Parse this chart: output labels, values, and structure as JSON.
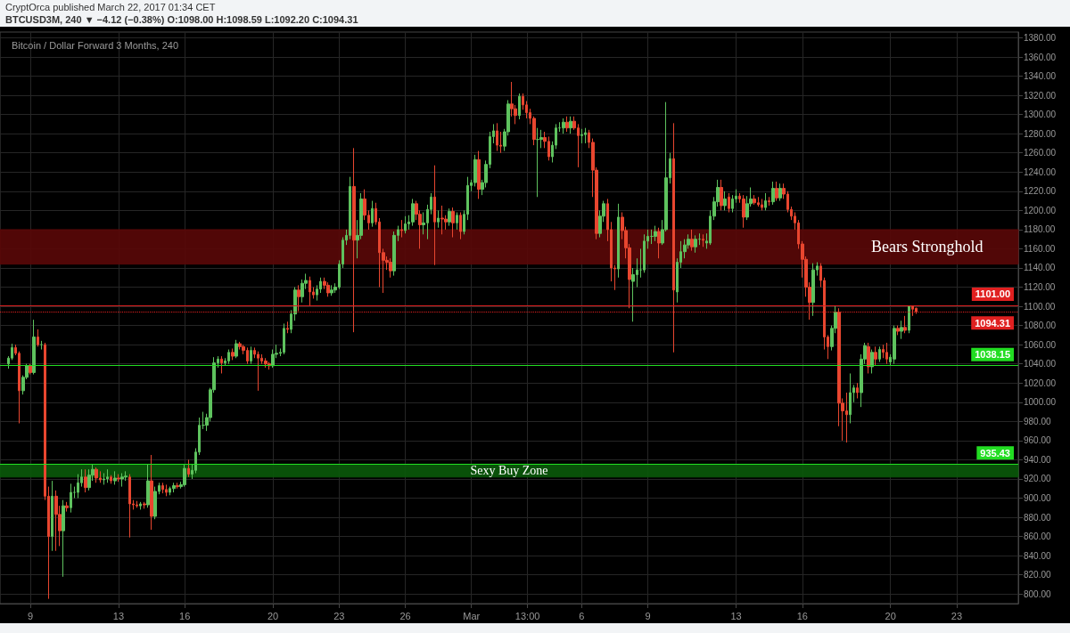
{
  "chart_data": {
    "type": "candlestick",
    "title": "Bitcoin / Dollar Forward 3 Months, 240",
    "subtitle": "BTCUSD3M, 240 ▼ −4.12 (−0.38%) O:1098.00 H:1098.59 L:1092.20 C:1094.31",
    "annotations": [
      "CryptOrca published March 22, 2017 01:34 CET"
    ],
    "colors": [
      "#5ec25e",
      "#5ec25e",
      "#e8462f",
      "#e8462f",
      "#5ec25e",
      "#5ec25e",
      "#e8462f",
      "#5ec25e",
      "#e8462f",
      "#5ec25e",
      "#e8462f",
      "#e8462f",
      "#5ec25e",
      "#e8462f",
      "#e8462f",
      "#5ec25e",
      "#e8462f",
      "#5ec25e",
      "#5ec25e",
      "#5ec25e",
      "#5ec25e",
      "#e8462f",
      "#5ec25e",
      "#5ec25e",
      "#e8462f",
      "#e8462f",
      "#5ec25e",
      "#5ec25e",
      "#e8462f",
      "#5ec25e",
      "#e8462f",
      "#5ec25e",
      "#5ec25e",
      "#e8462f",
      "#e8462f",
      "#e8462f",
      "#5ec25e",
      "#e8462f",
      "#5ec25e",
      "#e8462f",
      "#5ec25e",
      "#5ec25e",
      "#e8462f",
      "#e8462f",
      "#5ec25e",
      "#5ec25e",
      "#e8462f",
      "#5ec25e",
      "#5ec25e",
      "#e8462f",
      "#5ec25e",
      "#5ec25e",
      "#5ec25e",
      "#5ec25e",
      "#5ec25e",
      "#5ec25e",
      "#5ec25e",
      "#5ec25e",
      "#e8462f",
      "#5ec25e",
      "#5ec25e",
      "#e8462f",
      "#5ec25e",
      "#e8462f",
      "#e8462f",
      "#e8462f",
      "#5ec25e",
      "#e8462f",
      "#e8462f",
      "#e8462f",
      "#e8462f",
      "#e8462f",
      "#5ec25e",
      "#5ec25e",
      "#5ec25e",
      "#5ec25e",
      "#e8462f",
      "#5ec25e",
      "#5ec25e",
      "#e8462f",
      "#5ec25e",
      "#5ec25e",
      "#e8462f",
      "#e8462f",
      "#5ec25e",
      "#5ec25e",
      "#e8462f",
      "#e8462f",
      "#5ec25e",
      "#5ec25e",
      "#5ec25e",
      "#5ec25e",
      "#5ec25e",
      "#5ec25e",
      "#e8462f",
      "#5ec25e",
      "#5ec25e",
      "#e8462f",
      "#e8462f",
      "#5ec25e",
      "#e8462f",
      "#e8462f",
      "#e8462f",
      "#e8462f",
      "#e8462f",
      "#5ec25e",
      "#5ec25e",
      "#e8462f",
      "#5ec25e",
      "#5ec25e",
      "#5ec25e",
      "#e8462f",
      "#e8462f",
      "#5ec25e",
      "#5ec25e",
      "#5ec25e",
      "#e8462f",
      "#5ec25e",
      "#e8462f",
      "#e8462f",
      "#5ec25e",
      "#e8462f",
      "#5ec25e",
      "#e8462f",
      "#5ec25e",
      "#5ec25e",
      "#5ec25e",
      "#5ec25e",
      "#e8462f",
      "#5ec25e",
      "#5ec25e",
      "#5ec25e",
      "#5ec25e",
      "#e8462f",
      "#e8462f",
      "#5ec25e",
      "#5ec25e",
      "#e8462f",
      "#e8462f",
      "#5ec25e",
      "#e8462f",
      "#e8462f",
      "#e8462f",
      "#e8462f",
      "#5ec25e",
      "#5ec25e",
      "#e8462f",
      "#e8462f",
      "#5ec25e",
      "#5ec25e",
      "#5ec25e",
      "#5ec25e",
      "#e8462f",
      "#5ec25e",
      "#e8462f",
      "#e8462f",
      "#5ec25e",
      "#5ec25e",
      "#e8462f",
      "#e8462f",
      "#e8462f",
      "#5ec25e",
      "#5ec25e",
      "#e8462f",
      "#e8462f",
      "#e8462f",
      "#5ec25e",
      "#e8462f",
      "#e8462f",
      "#e8462f",
      "#5ec25e",
      "#5ec25e",
      "#5ec25e",
      "#5ec25e",
      "#5ec25e",
      "#5ec25e",
      "#5ec25e",
      "#e8462f",
      "#5ec25e",
      "#5ec25e",
      "#5ec25e",
      "#e8462f",
      "#5ec25e",
      "#5ec25e",
      "#5ec25e",
      "#5ec25e",
      "#e8462f",
      "#5ec25e",
      "#5ec25e",
      "#e8462f",
      "#5ec25e",
      "#5ec25e",
      "#5ec25e",
      "#5ec25e",
      "#e8462f",
      "#5ec25e",
      "#e8462f",
      "#5ec25e",
      "#5ec25e",
      "#e8462f",
      "#e8462f",
      "#5ec25e",
      "#5ec25e",
      "#e8462f",
      "#e8462f",
      "#e8462f",
      "#5ec25e",
      "#e8462f",
      "#5ec25e",
      "#e8462f",
      "#5ec25e",
      "#e8462f",
      "#e8462f",
      "#e8462f",
      "#e8462f",
      "#e8462f",
      "#e8462f",
      "#e8462f",
      "#e8462f",
      "#5ec25e",
      "#5ec25e",
      "#e8462f",
      "#e8462f",
      "#e8462f",
      "#5ec25e",
      "#5ec25e",
      "#e8462f",
      "#e8462f",
      "#e8462f",
      "#5ec25e",
      "#5ec25e",
      "#e8462f",
      "#5ec25e",
      "#5ec25e",
      "#e8462f",
      "#5ec25e",
      "#e8462f",
      "#5ec25e",
      "#e8462f",
      "#e8462f",
      "#5ec25e",
      "#5ec25e",
      "#e8462f",
      "#5ec25e",
      "#e8462f",
      "#5ec25e",
      "#e8462f",
      "#e8462f"
    ],
    "x": [
      "2017-02-08T00:00",
      "2017-02-08T04:00",
      "2017-02-08T08:00",
      "2017-02-08T12:00",
      "2017-02-08T16:00",
      "2017-02-08T20:00",
      "2017-02-09T00:00",
      "2017-02-09T04:00",
      "2017-02-09T08:00",
      "2017-02-09T12:00",
      "2017-02-09T16:00",
      "2017-02-09T20:00",
      "2017-02-10T00:00",
      "2017-02-10T04:00",
      "2017-02-10T08:00",
      "2017-02-10T12:00",
      "2017-02-10T16:00",
      "2017-02-10T20:00",
      "2017-02-11T00:00",
      "2017-02-11T04:00",
      "2017-02-11T08:00",
      "2017-02-11T12:00",
      "2017-02-11T16:00",
      "2017-02-11T20:00",
      "2017-02-12T00:00",
      "2017-02-12T04:00",
      "2017-02-12T08:00",
      "2017-02-12T12:00",
      "2017-02-12T16:00",
      "2017-02-12T20:00",
      "2017-02-13T00:00",
      "2017-02-13T04:00",
      "2017-02-13T08:00",
      "2017-02-13T12:00",
      "2017-02-13T16:00",
      "2017-02-13T20:00",
      "2017-02-14T00:00",
      "2017-02-14T04:00",
      "2017-02-14T08:00",
      "2017-02-14T12:00",
      "2017-02-14T16:00",
      "2017-02-14T20:00",
      "2017-02-15T00:00",
      "2017-02-15T04:00",
      "2017-02-15T08:00",
      "2017-02-15T12:00",
      "2017-02-15T16:00",
      "2017-02-15T20:00",
      "2017-02-16T00:00",
      "2017-02-16T04:00",
      "2017-02-16T08:00",
      "2017-02-16T12:00",
      "2017-02-16T16:00",
      "2017-02-16T20:00",
      "2017-02-17T00:00",
      "2017-02-17T04:00",
      "2017-02-17T08:00",
      "2017-02-17T12:00",
      "2017-02-17T16:00",
      "2017-02-17T20:00",
      "2017-02-18T00:00",
      "2017-02-18T04:00",
      "2017-02-18T08:00",
      "2017-02-18T12:00",
      "2017-02-18T16:00",
      "2017-02-18T20:00",
      "2017-02-19T00:00",
      "2017-02-19T04:00",
      "2017-02-19T08:00",
      "2017-02-19T12:00",
      "2017-02-19T16:00",
      "2017-02-19T20:00",
      "2017-02-20T00:00",
      "2017-02-20T04:00",
      "2017-02-20T08:00",
      "2017-02-20T12:00",
      "2017-02-20T16:00",
      "2017-02-20T20:00",
      "2017-02-21T00:00",
      "2017-02-21T04:00",
      "2017-02-21T08:00",
      "2017-02-21T12:00",
      "2017-02-21T16:00",
      "2017-02-21T20:00",
      "2017-02-22T00:00",
      "2017-02-22T04:00",
      "2017-02-22T08:00",
      "2017-02-22T12:00",
      "2017-02-22T16:00",
      "2017-02-22T20:00",
      "2017-02-23T00:00",
      "2017-02-23T04:00",
      "2017-02-23T08:00",
      "2017-02-23T12:00",
      "2017-02-23T16:00",
      "2017-02-23T20:00",
      "2017-02-24T00:00",
      "2017-02-24T04:00",
      "2017-02-24T08:00",
      "2017-02-24T12:00",
      "2017-02-24T16:00",
      "2017-02-24T20:00",
      "2017-02-25T00:00",
      "2017-02-25T04:00",
      "2017-02-25T08:00",
      "2017-02-25T12:00",
      "2017-02-25T16:00",
      "2017-02-25T20:00",
      "2017-02-26T00:00",
      "2017-02-26T04:00",
      "2017-02-26T08:00",
      "2017-02-26T12:00",
      "2017-02-26T16:00",
      "2017-02-26T20:00",
      "2017-02-27T00:00",
      "2017-02-27T04:00",
      "2017-02-27T08:00",
      "2017-02-27T12:00",
      "2017-02-27T16:00",
      "2017-02-27T20:00",
      "2017-02-28T00:00",
      "2017-02-28T04:00",
      "2017-02-28T08:00",
      "2017-02-28T12:00",
      "2017-02-28T16:00",
      "2017-02-28T20:00",
      "2017-03-01T00:00",
      "2017-03-01T04:00",
      "2017-03-01T08:00",
      "2017-03-01T12:00",
      "2017-03-01T16:00",
      "2017-03-01T20:00",
      "2017-03-02T00:00",
      "2017-03-02T04:00",
      "2017-03-02T08:00",
      "2017-03-02T12:00",
      "2017-03-02T16:00",
      "2017-03-02T20:00",
      "2017-03-03T00:00",
      "2017-03-03T04:00",
      "2017-03-03T08:00",
      "2017-03-03T12:00",
      "2017-03-03T16:00",
      "2017-03-03T20:00",
      "2017-03-04T00:00",
      "2017-03-04T04:00",
      "2017-03-04T08:00",
      "2017-03-04T12:00",
      "2017-03-04T16:00",
      "2017-03-04T20:00",
      "2017-03-05T00:00",
      "2017-03-05T04:00",
      "2017-03-05T08:00",
      "2017-03-05T12:00",
      "2017-03-05T16:00",
      "2017-03-05T20:00",
      "2017-03-06T00:00",
      "2017-03-06T04:00",
      "2017-03-06T08:00",
      "2017-03-06T12:00",
      "2017-03-06T16:00",
      "2017-03-06T20:00",
      "2017-03-07T00:00",
      "2017-03-07T04:00",
      "2017-03-07T08:00",
      "2017-03-07T12:00",
      "2017-03-07T16:00",
      "2017-03-07T20:00",
      "2017-03-08T00:00",
      "2017-03-08T04:00",
      "2017-03-08T08:00",
      "2017-03-08T12:00",
      "2017-03-08T16:00",
      "2017-03-08T20:00",
      "2017-03-09T00:00",
      "2017-03-09T04:00",
      "2017-03-09T08:00",
      "2017-03-09T12:00",
      "2017-03-09T16:00",
      "2017-03-09T20:00",
      "2017-03-10T00:00",
      "2017-03-10T04:00",
      "2017-03-10T08:00",
      "2017-03-10T12:00",
      "2017-03-10T16:00",
      "2017-03-10T20:00",
      "2017-03-11T00:00",
      "2017-03-11T04:00",
      "2017-03-11T08:00",
      "2017-03-11T12:00",
      "2017-03-11T16:00",
      "2017-03-11T20:00",
      "2017-03-12T00:00",
      "2017-03-12T04:00",
      "2017-03-12T08:00",
      "2017-03-12T12:00",
      "2017-03-12T16:00",
      "2017-03-12T20:00",
      "2017-03-13T00:00",
      "2017-03-13T04:00",
      "2017-03-13T08:00",
      "2017-03-13T12:00",
      "2017-03-13T16:00",
      "2017-03-13T20:00",
      "2017-03-14T00:00",
      "2017-03-14T04:00",
      "2017-03-14T08:00",
      "2017-03-14T12:00",
      "2017-03-14T16:00",
      "2017-03-14T20:00",
      "2017-03-15T00:00",
      "2017-03-15T04:00",
      "2017-03-15T08:00",
      "2017-03-15T12:00",
      "2017-03-15T16:00",
      "2017-03-15T20:00",
      "2017-03-16T00:00",
      "2017-03-16T04:00",
      "2017-03-16T08:00",
      "2017-03-16T12:00",
      "2017-03-16T16:00",
      "2017-03-16T20:00",
      "2017-03-17T00:00",
      "2017-03-17T04:00",
      "2017-03-17T08:00",
      "2017-03-17T12:00",
      "2017-03-17T16:00",
      "2017-03-17T20:00",
      "2017-03-18T00:00",
      "2017-03-18T04:00",
      "2017-03-18T08:00",
      "2017-03-18T12:00",
      "2017-03-18T16:00",
      "2017-03-18T20:00",
      "2017-03-19T00:00",
      "2017-03-19T04:00",
      "2017-03-19T08:00",
      "2017-03-19T12:00",
      "2017-03-19T16:00",
      "2017-03-19T20:00",
      "2017-03-20T00:00",
      "2017-03-20T04:00",
      "2017-03-20T08:00",
      "2017-03-20T12:00",
      "2017-03-20T16:00",
      "2017-03-20T20:00",
      "2017-03-21T00:00",
      "2017-03-21T04:00"
    ],
    "ohlc": [
      [
        1040,
        1048,
        1035,
        1046
      ],
      [
        1046,
        1061,
        1044,
        1057
      ],
      [
        1057,
        1060,
        1049,
        1051
      ],
      [
        1051,
        1053,
        978,
        1012
      ],
      [
        1012,
        1028,
        1008,
        1026
      ],
      [
        1026,
        1040,
        1024,
        1038
      ],
      [
        1038,
        1040,
        1029,
        1031
      ],
      [
        1031,
        1086,
        1029,
        1068
      ],
      [
        1068,
        1076,
        1058,
        1060
      ],
      [
        1060,
        1064,
        1055,
        1060
      ],
      [
        1060,
        1062,
        898,
        902
      ],
      [
        902,
        912,
        795,
        860
      ],
      [
        860,
        918,
        845,
        902
      ],
      [
        902,
        908,
        845,
        883
      ],
      [
        883,
        892,
        850,
        866
      ],
      [
        866,
        898,
        818,
        892
      ],
      [
        892,
        896,
        886,
        890
      ],
      [
        890,
        915,
        885,
        906
      ],
      [
        906,
        912,
        900,
        906
      ],
      [
        906,
        925,
        900,
        916
      ],
      [
        916,
        930,
        912,
        922
      ],
      [
        922,
        930,
        906,
        911
      ],
      [
        911,
        930,
        908,
        924
      ],
      [
        924,
        935,
        918,
        930
      ],
      [
        930,
        932,
        916,
        921
      ],
      [
        921,
        928,
        916,
        919
      ],
      [
        919,
        926,
        914,
        920
      ],
      [
        920,
        930,
        916,
        922
      ],
      [
        922,
        924,
        915,
        918
      ],
      [
        918,
        928,
        914,
        921
      ],
      [
        921,
        925,
        917,
        920
      ],
      [
        920,
        926,
        912,
        922
      ],
      [
        922,
        928,
        918,
        923
      ],
      [
        922,
        925,
        859,
        894
      ],
      [
        894,
        898,
        888,
        893
      ],
      [
        893,
        897,
        890,
        892
      ],
      [
        892,
        896,
        888,
        894
      ],
      [
        894,
        896,
        889,
        893
      ],
      [
        893,
        935,
        890,
        918
      ],
      [
        918,
        945,
        867,
        881
      ],
      [
        881,
        912,
        878,
        907
      ],
      [
        907,
        916,
        904,
        913
      ],
      [
        913,
        916,
        905,
        909
      ],
      [
        909,
        914,
        902,
        906
      ],
      [
        906,
        912,
        903,
        910
      ],
      [
        910,
        916,
        906,
        913
      ],
      [
        913,
        916,
        910,
        912
      ],
      [
        912,
        917,
        910,
        914
      ],
      [
        914,
        935,
        912,
        931
      ],
      [
        931,
        940,
        922,
        925
      ],
      [
        925,
        935,
        920,
        929
      ],
      [
        929,
        952,
        926,
        948
      ],
      [
        948,
        984,
        945,
        976
      ],
      [
        976,
        990,
        972,
        976
      ],
      [
        976,
        988,
        970,
        984
      ],
      [
        984,
        1015,
        980,
        1013
      ],
      [
        1013,
        1047,
        1010,
        1041
      ],
      [
        1041,
        1048,
        1036,
        1045
      ],
      [
        1045,
        1048,
        1030,
        1041
      ],
      [
        1041,
        1046,
        1038,
        1043
      ],
      [
        1043,
        1055,
        1040,
        1052
      ],
      [
        1052,
        1056,
        1044,
        1048
      ],
      [
        1048,
        1065,
        1046,
        1061
      ],
      [
        1061,
        1063,
        1055,
        1058
      ],
      [
        1058,
        1060,
        1050,
        1054
      ],
      [
        1054,
        1057,
        1040,
        1043
      ],
      [
        1043,
        1058,
        1040,
        1054
      ],
      [
        1054,
        1057,
        1046,
        1050
      ],
      [
        1050,
        1053,
        1012,
        1046
      ],
      [
        1046,
        1050,
        1040,
        1043
      ],
      [
        1043,
        1046,
        1036,
        1040
      ],
      [
        1040,
        1042,
        1034,
        1038
      ],
      [
        1038,
        1055,
        1036,
        1050
      ],
      [
        1050,
        1060,
        1046,
        1051
      ],
      [
        1051,
        1056,
        1048,
        1052
      ],
      [
        1052,
        1082,
        1050,
        1077
      ],
      [
        1077,
        1084,
        1072,
        1076
      ],
      [
        1076,
        1096,
        1072,
        1092
      ],
      [
        1092,
        1120,
        1085,
        1117
      ],
      [
        1117,
        1122,
        1095,
        1110
      ],
      [
        1110,
        1128,
        1104,
        1124
      ],
      [
        1124,
        1134,
        1118,
        1127
      ],
      [
        1127,
        1131,
        1100,
        1115
      ],
      [
        1115,
        1120,
        1108,
        1112
      ],
      [
        1112,
        1122,
        1106,
        1118
      ],
      [
        1118,
        1130,
        1114,
        1126
      ],
      [
        1126,
        1130,
        1118,
        1122
      ],
      [
        1122,
        1125,
        1110,
        1114
      ],
      [
        1114,
        1122,
        1111,
        1117
      ],
      [
        1117,
        1124,
        1114,
        1120
      ],
      [
        1120,
        1148,
        1118,
        1144
      ],
      [
        1144,
        1172,
        1140,
        1169
      ],
      [
        1169,
        1180,
        1164,
        1174
      ],
      [
        1174,
        1235,
        1170,
        1225
      ],
      [
        1225,
        1265,
        1073,
        1169
      ],
      [
        1169,
        1190,
        1150,
        1174
      ],
      [
        1174,
        1218,
        1170,
        1212
      ],
      [
        1212,
        1222,
        1190,
        1195
      ],
      [
        1195,
        1200,
        1180,
        1187
      ],
      [
        1187,
        1210,
        1183,
        1202
      ],
      [
        1202,
        1208,
        1185,
        1188
      ],
      [
        1188,
        1192,
        1120,
        1156
      ],
      [
        1156,
        1160,
        1114,
        1148
      ],
      [
        1148,
        1152,
        1138,
        1146
      ],
      [
        1146,
        1150,
        1130,
        1137
      ],
      [
        1137,
        1178,
        1132,
        1174
      ],
      [
        1174,
        1184,
        1168,
        1180
      ],
      [
        1180,
        1190,
        1172,
        1179
      ],
      [
        1179,
        1194,
        1176,
        1186
      ],
      [
        1186,
        1195,
        1180,
        1188
      ],
      [
        1188,
        1212,
        1184,
        1207
      ],
      [
        1207,
        1210,
        1190,
        1196
      ],
      [
        1196,
        1200,
        1160,
        1185
      ],
      [
        1185,
        1198,
        1175,
        1187
      ],
      [
        1187,
        1206,
        1170,
        1201
      ],
      [
        1201,
        1218,
        1196,
        1214
      ],
      [
        1214,
        1247,
        1143,
        1188
      ],
      [
        1188,
        1200,
        1182,
        1192
      ],
      [
        1192,
        1205,
        1175,
        1191
      ],
      [
        1191,
        1195,
        1180,
        1188
      ],
      [
        1188,
        1202,
        1184,
        1199
      ],
      [
        1199,
        1203,
        1172,
        1187
      ],
      [
        1187,
        1198,
        1180,
        1195
      ],
      [
        1195,
        1198,
        1170,
        1178
      ],
      [
        1178,
        1200,
        1175,
        1196
      ],
      [
        1196,
        1235,
        1190,
        1226
      ],
      [
        1226,
        1232,
        1220,
        1229
      ],
      [
        1229,
        1258,
        1225,
        1253
      ],
      [
        1253,
        1262,
        1212,
        1222
      ],
      [
        1222,
        1232,
        1216,
        1229
      ],
      [
        1229,
        1252,
        1224,
        1248
      ],
      [
        1248,
        1282,
        1244,
        1277
      ],
      [
        1277,
        1290,
        1270,
        1283
      ],
      [
        1283,
        1291,
        1262,
        1268
      ],
      [
        1268,
        1282,
        1260,
        1267
      ],
      [
        1267,
        1285,
        1262,
        1282
      ],
      [
        1282,
        1315,
        1278,
        1311
      ],
      [
        1311,
        1334,
        1298,
        1306
      ],
      [
        1306,
        1310,
        1290,
        1299
      ],
      [
        1299,
        1322,
        1295,
        1319
      ],
      [
        1319,
        1322,
        1305,
        1310
      ],
      [
        1310,
        1314,
        1296,
        1302
      ],
      [
        1302,
        1306,
        1290,
        1296
      ],
      [
        1296,
        1298,
        1268,
        1274
      ],
      [
        1274,
        1286,
        1214,
        1274
      ],
      [
        1274,
        1284,
        1265,
        1276
      ],
      [
        1276,
        1282,
        1265,
        1272
      ],
      [
        1272,
        1277,
        1252,
        1256
      ],
      [
        1256,
        1272,
        1250,
        1268
      ],
      [
        1268,
        1290,
        1264,
        1286
      ],
      [
        1286,
        1292,
        1282,
        1286
      ],
      [
        1286,
        1296,
        1280,
        1292
      ],
      [
        1292,
        1298,
        1282,
        1286
      ],
      [
        1286,
        1298,
        1280,
        1293
      ],
      [
        1293,
        1298,
        1284,
        1286
      ],
      [
        1286,
        1290,
        1245,
        1278
      ],
      [
        1278,
        1285,
        1270,
        1279
      ],
      [
        1279,
        1286,
        1270,
        1281
      ],
      [
        1281,
        1284,
        1265,
        1271
      ],
      [
        1271,
        1275,
        1214,
        1242
      ],
      [
        1242,
        1245,
        1170,
        1176
      ],
      [
        1176,
        1200,
        1172,
        1194
      ],
      [
        1194,
        1210,
        1188,
        1207
      ],
      [
        1207,
        1212,
        1168,
        1180
      ],
      [
        1180,
        1188,
        1126,
        1140
      ],
      [
        1140,
        1143,
        1117,
        1139
      ],
      [
        1139,
        1207,
        1130,
        1193
      ],
      [
        1193,
        1198,
        1170,
        1179
      ],
      [
        1179,
        1183,
        1150,
        1161
      ],
      [
        1161,
        1165,
        1098,
        1128
      ],
      [
        1126,
        1140,
        1084,
        1133
      ],
      [
        1133,
        1150,
        1120,
        1138
      ],
      [
        1138,
        1160,
        1130,
        1138
      ],
      [
        1138,
        1175,
        1135,
        1168
      ],
      [
        1168,
        1180,
        1160,
        1173
      ],
      [
        1173,
        1180,
        1165,
        1173
      ],
      [
        1173,
        1184,
        1168,
        1178
      ],
      [
        1178,
        1182,
        1150,
        1166
      ],
      [
        1166,
        1190,
        1164,
        1180
      ],
      [
        1180,
        1313,
        1178,
        1234
      ],
      [
        1234,
        1260,
        1228,
        1254
      ],
      [
        1254,
        1291,
        1052,
        1117
      ],
      [
        1115,
        1150,
        1104,
        1146
      ],
      [
        1146,
        1168,
        1140,
        1157
      ],
      [
        1157,
        1170,
        1150,
        1164
      ],
      [
        1164,
        1175,
        1160,
        1170
      ],
      [
        1170,
        1180,
        1158,
        1162
      ],
      [
        1162,
        1174,
        1156,
        1170
      ],
      [
        1170,
        1176,
        1164,
        1170
      ],
      [
        1170,
        1175,
        1162,
        1169
      ],
      [
        1166,
        1176,
        1160,
        1168
      ],
      [
        1166,
        1200,
        1164,
        1194
      ],
      [
        1194,
        1214,
        1190,
        1209
      ],
      [
        1209,
        1232,
        1204,
        1224
      ],
      [
        1224,
        1232,
        1200,
        1205
      ],
      [
        1205,
        1220,
        1200,
        1212
      ],
      [
        1214,
        1218,
        1198,
        1202
      ],
      [
        1202,
        1216,
        1198,
        1212
      ],
      [
        1212,
        1222,
        1208,
        1215
      ],
      [
        1215,
        1218,
        1208,
        1212
      ],
      [
        1212,
        1216,
        1182,
        1193
      ],
      [
        1193,
        1215,
        1190,
        1207
      ],
      [
        1207,
        1224,
        1204,
        1212
      ],
      [
        1212,
        1216,
        1206,
        1208
      ],
      [
        1208,
        1214,
        1204,
        1206
      ],
      [
        1206,
        1212,
        1200,
        1203
      ],
      [
        1203,
        1218,
        1200,
        1210
      ],
      [
        1210,
        1214,
        1205,
        1209
      ],
      [
        1209,
        1230,
        1206,
        1223
      ],
      [
        1223,
        1230,
        1210,
        1213
      ],
      [
        1213,
        1228,
        1210,
        1223
      ],
      [
        1223,
        1228,
        1212,
        1217
      ],
      [
        1217,
        1220,
        1198,
        1201
      ],
      [
        1201,
        1204,
        1190,
        1194
      ],
      [
        1194,
        1198,
        1180,
        1187
      ],
      [
        1187,
        1190,
        1160,
        1165
      ],
      [
        1165,
        1168,
        1130,
        1149
      ],
      [
        1149,
        1152,
        1110,
        1120
      ],
      [
        1120,
        1125,
        1086,
        1104
      ],
      [
        1104,
        1145,
        1090,
        1138
      ],
      [
        1138,
        1146,
        1132,
        1142
      ],
      [
        1142,
        1145,
        1120,
        1127
      ],
      [
        1127,
        1130,
        1055,
        1068
      ],
      [
        1068,
        1070,
        1045,
        1058
      ],
      [
        1058,
        1080,
        1054,
        1077
      ],
      [
        1077,
        1100,
        1072,
        1094
      ],
      [
        1094,
        1098,
        975,
        999
      ],
      [
        999,
        1004,
        960,
        991
      ],
      [
        991,
        1010,
        958,
        987
      ],
      [
        987,
        1030,
        978,
        1010
      ],
      [
        1010,
        1018,
        1000,
        1015
      ],
      [
        1015,
        1020,
        1004,
        1010
      ],
      [
        1010,
        1050,
        995,
        1045
      ],
      [
        1045,
        1062,
        1040,
        1059
      ],
      [
        1058,
        1062,
        1030,
        1037
      ],
      [
        1037,
        1055,
        1030,
        1052
      ],
      [
        1052,
        1058,
        1038,
        1045
      ],
      [
        1045,
        1058,
        1042,
        1055
      ],
      [
        1055,
        1060,
        1046,
        1052
      ],
      [
        1052,
        1062,
        1040,
        1045
      ],
      [
        1042,
        1050,
        1038,
        1047
      ],
      [
        1045,
        1080,
        1040,
        1077
      ],
      [
        1077,
        1080,
        1070,
        1074
      ],
      [
        1074,
        1085,
        1066,
        1078
      ],
      [
        1078,
        1090,
        1072,
        1075
      ],
      [
        1075,
        1101,
        1072,
        1100
      ],
      [
        1100,
        1101,
        1090,
        1097
      ],
      [
        1098,
        1098.59,
        1092.2,
        1094.31
      ]
    ],
    "xlim": [
      "2017-02-07T15:00",
      "2017-03-25T19:00"
    ],
    "xticks": [
      {
        "value": "2017-02-09",
        "label": "9"
      },
      {
        "value": "2017-02-13",
        "label": "13"
      },
      {
        "value": "2017-02-16",
        "label": "16"
      },
      {
        "value": "2017-02-20",
        "label": "20"
      },
      {
        "value": "2017-02-23",
        "label": "23"
      },
      {
        "value": "2017-02-26",
        "label": "26"
      },
      {
        "value": "2017-03-01",
        "label": "Mar"
      },
      {
        "value": "2017-03-03T13:00",
        "label": "13:00"
      },
      {
        "value": "2017-03-06",
        "label": "6"
      },
      {
        "value": "2017-03-09",
        "label": "9"
      },
      {
        "value": "2017-03-13",
        "label": "13"
      },
      {
        "value": "2017-03-16",
        "label": "16"
      },
      {
        "value": "2017-03-20",
        "label": "20"
      },
      {
        "value": "2017-03-23",
        "label": "23"
      }
    ],
    "ylim": [
      790,
      1386
    ],
    "yticks": [
      {
        "value": 800,
        "label": "800.00"
      },
      {
        "value": 820,
        "label": "820.00"
      },
      {
        "value": 840,
        "label": "840.00"
      },
      {
        "value": 860,
        "label": "860.00"
      },
      {
        "value": 880,
        "label": "880.00"
      },
      {
        "value": 900,
        "label": "900.00"
      },
      {
        "value": 920,
        "label": "920.00"
      },
      {
        "value": 940,
        "label": "940.00"
      },
      {
        "value": 960,
        "label": "960.00"
      },
      {
        "value": 980,
        "label": "980.00"
      },
      {
        "value": 1000,
        "label": "1000.00"
      },
      {
        "value": 1020,
        "label": "1020.00"
      },
      {
        "value": 1040,
        "label": "1040.00"
      },
      {
        "value": 1060,
        "label": "1060.00"
      },
      {
        "value": 1080,
        "label": "1080.00"
      },
      {
        "value": 1100,
        "label": "1100.00"
      },
      {
        "value": 1120,
        "label": "1120.00"
      },
      {
        "value": 1140,
        "label": "1140.00"
      },
      {
        "value": 1160,
        "label": "1160.00"
      },
      {
        "value": 1180,
        "label": "1180.00"
      },
      {
        "value": 1200,
        "label": "1200.00"
      },
      {
        "value": 1220,
        "label": "1220.00"
      },
      {
        "value": 1240,
        "label": "1240.00"
      },
      {
        "value": 1260,
        "label": "1260.00"
      },
      {
        "value": 1280,
        "label": "1280.00"
      },
      {
        "value": 1300,
        "label": "1300.00"
      },
      {
        "value": 1320,
        "label": "1320.00"
      },
      {
        "value": 1340,
        "label": "1340.00"
      },
      {
        "value": 1360,
        "label": "1360.00"
      },
      {
        "value": 1380,
        "label": "1380.00"
      }
    ],
    "ref_lines": [
      {
        "axis": "y",
        "value": 1101,
        "label": "1101.00",
        "color": "#e02020",
        "line_style": "solid"
      },
      {
        "axis": "y",
        "value": 1094.31,
        "label": "1094.31",
        "color": "#e02020",
        "line_style": "dotted"
      },
      {
        "axis": "y",
        "value": 1038.15,
        "label": "1038.15",
        "color": "#22dd22",
        "line_style": "solid"
      },
      {
        "axis": "y",
        "value": 935.43,
        "label": "935.43",
        "color": "#22dd22",
        "line_style": "solid"
      }
    ],
    "bands": [
      {
        "axis": "y",
        "from": 1144,
        "to": 1180,
        "label": "Bears Stronghold",
        "color": "#5a0808"
      },
      {
        "axis": "y",
        "from": 922,
        "to": 935.43,
        "label": "Sexy Buy Zone",
        "color": "#0a5a0a"
      }
    ],
    "grid": true
  }
}
